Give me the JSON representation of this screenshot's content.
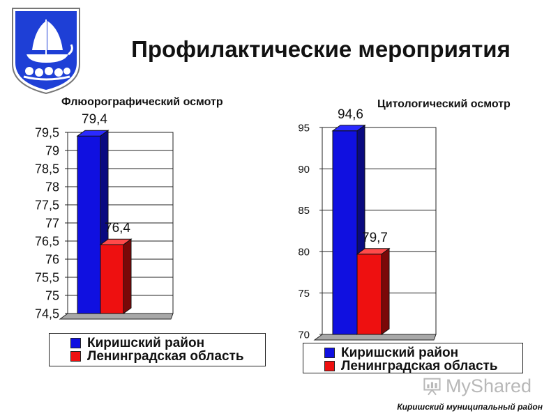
{
  "header": {
    "title": "Профилактические мероприятия"
  },
  "colors": {
    "series_1": "#1010e0",
    "series_2": "#ee1010",
    "emblem_blue": "#1e3fd6"
  },
  "chart_data": [
    {
      "type": "bar",
      "title": "Флюорографический осмотр",
      "categories": [
        ""
      ],
      "series": [
        {
          "name": "Киришский район",
          "values": [
            79.4
          ]
        },
        {
          "name": "Ленинградская область",
          "values": [
            76.4
          ]
        }
      ],
      "data_labels": [
        "79,4",
        "76,4"
      ],
      "ylim": [
        74.5,
        79.5
      ],
      "ytick_labels": [
        "74,5",
        "75",
        "75,5",
        "76",
        "76,5",
        "77",
        "77,5",
        "78",
        "78,5",
        "79",
        "79,5"
      ],
      "grid": true,
      "legend": "bottom",
      "xlabel": "",
      "ylabel": ""
    },
    {
      "type": "bar",
      "title": "Цитологический осмотр",
      "categories": [
        ""
      ],
      "series": [
        {
          "name": "Киришский район",
          "values": [
            94.6
          ]
        },
        {
          "name": "Ленинградская область",
          "values": [
            79.7
          ]
        }
      ],
      "data_labels": [
        "94,6",
        "79,7"
      ],
      "ylim": [
        70,
        95
      ],
      "ytick_labels": [
        "70",
        "75",
        "80",
        "85",
        "90",
        "95"
      ],
      "grid": true,
      "legend": "bottom",
      "xlabel": "",
      "ylabel": ""
    }
  ],
  "watermark": {
    "text": "MyShared",
    "icon": "presentation-board-icon"
  },
  "footer": {
    "caption": "Киришский муниципальный район"
  }
}
